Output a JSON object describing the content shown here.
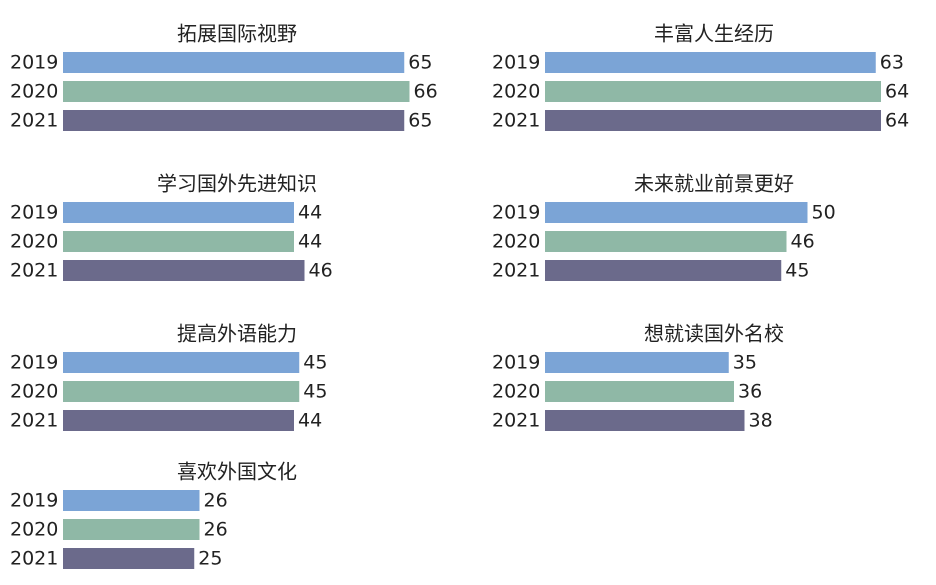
{
  "chart_data": [
    {
      "type": "bar",
      "orientation": "horizontal",
      "title": "拓展国际视野",
      "categories": [
        "2019",
        "2020",
        "2021"
      ],
      "values": [
        65,
        66,
        65
      ],
      "colors": [
        "#7ba4d6",
        "#8fb8a6",
        "#6b6a8b"
      ]
    },
    {
      "type": "bar",
      "orientation": "horizontal",
      "title": "丰富人生经历",
      "categories": [
        "2019",
        "2020",
        "2021"
      ],
      "values": [
        63,
        64,
        64
      ],
      "colors": [
        "#7ba4d6",
        "#8fb8a6",
        "#6b6a8b"
      ]
    },
    {
      "type": "bar",
      "orientation": "horizontal",
      "title": "学习国外先进知识",
      "categories": [
        "2019",
        "2020",
        "2021"
      ],
      "values": [
        44,
        44,
        46
      ],
      "colors": [
        "#7ba4d6",
        "#8fb8a6",
        "#6b6a8b"
      ]
    },
    {
      "type": "bar",
      "orientation": "horizontal",
      "title": "未来就业前景更好",
      "categories": [
        "2019",
        "2020",
        "2021"
      ],
      "values": [
        50,
        46,
        45
      ],
      "colors": [
        "#7ba4d6",
        "#8fb8a6",
        "#6b6a8b"
      ]
    },
    {
      "type": "bar",
      "orientation": "horizontal",
      "title": "提高外语能力",
      "categories": [
        "2019",
        "2020",
        "2021"
      ],
      "values": [
        45,
        45,
        44
      ],
      "colors": [
        "#7ba4d6",
        "#8fb8a6",
        "#6b6a8b"
      ]
    },
    {
      "type": "bar",
      "orientation": "horizontal",
      "title": "想就读国外名校",
      "categories": [
        "2019",
        "2020",
        "2021"
      ],
      "values": [
        35,
        36,
        38
      ],
      "colors": [
        "#7ba4d6",
        "#8fb8a6",
        "#6b6a8b"
      ]
    },
    {
      "type": "bar",
      "orientation": "horizontal",
      "title": "喜欢外国文化",
      "categories": [
        "2019",
        "2020",
        "2021"
      ],
      "values": [
        26,
        26,
        25
      ],
      "colors": [
        "#7ba4d6",
        "#8fb8a6",
        "#6b6a8b"
      ]
    }
  ]
}
